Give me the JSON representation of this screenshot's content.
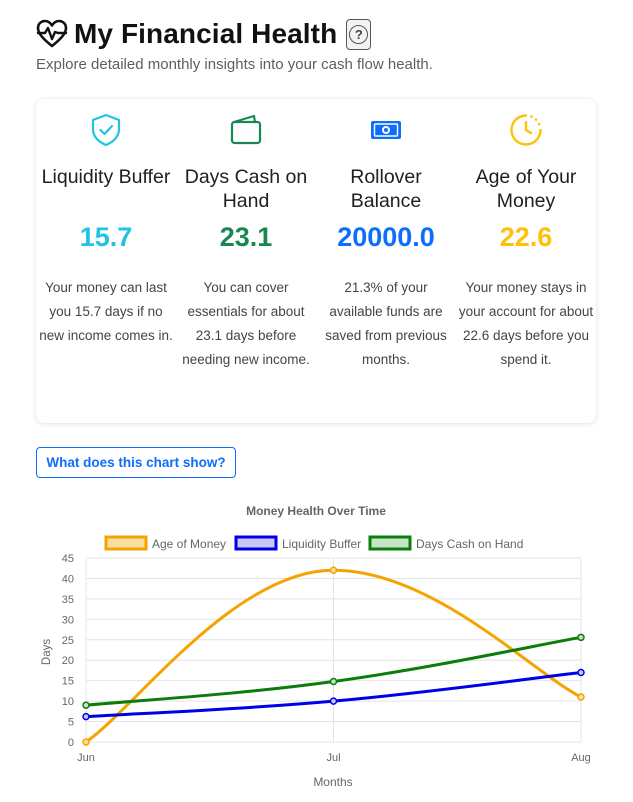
{
  "page": {
    "title": "My Financial Health",
    "subtitle": "Explore detailed monthly insights into your cash flow health.",
    "help_label": "?",
    "chart_button": "What does this chart show?"
  },
  "metrics": [
    {
      "title": "Liquidity Buffer",
      "value": "15.7",
      "color": "#1fc4e0",
      "desc": "Your money can last you 15.7 days if no new income comes in.",
      "icon": "shield-check-icon"
    },
    {
      "title": "Days Cash on Hand",
      "value": "23.1",
      "color": "#198754",
      "desc": "You can cover essentials for about 23.1 days before needing new income.",
      "icon": "wallet-icon"
    },
    {
      "title": "Rollover Balance",
      "value": "20000.0",
      "color": "#0d6efd",
      "desc": "21.3% of your available funds are saved from previous months.",
      "icon": "cash-icon"
    },
    {
      "title": "Age of Your Money",
      "value": "22.6",
      "color": "#ffc107",
      "desc": "Your money stays in your account for about 22.6 days before you spend it.",
      "icon": "clock-icon"
    }
  ],
  "chart_data": {
    "type": "line",
    "title": "Money Health Over Time",
    "xlabel": "Months",
    "ylabel": "Days",
    "categories": [
      "Jun",
      "Jul",
      "Aug"
    ],
    "ylim": [
      0,
      45
    ],
    "yticks": [
      0,
      5,
      10,
      15,
      20,
      25,
      30,
      35,
      40,
      45
    ],
    "grid": true,
    "legend": "top",
    "series": [
      {
        "name": "Age of Money",
        "values": [
          0,
          42,
          11
        ],
        "color": "#f5a300",
        "fill": "#fbdfa0"
      },
      {
        "name": "Liquidity Buffer",
        "values": [
          6.2,
          10,
          17
        ],
        "color": "#0000e6",
        "fill": "#c8c8f5"
      },
      {
        "name": "Days Cash on Hand",
        "values": [
          9,
          14.8,
          25.6
        ],
        "color": "#0a7d0a",
        "fill": "#c8e4c8"
      }
    ]
  }
}
